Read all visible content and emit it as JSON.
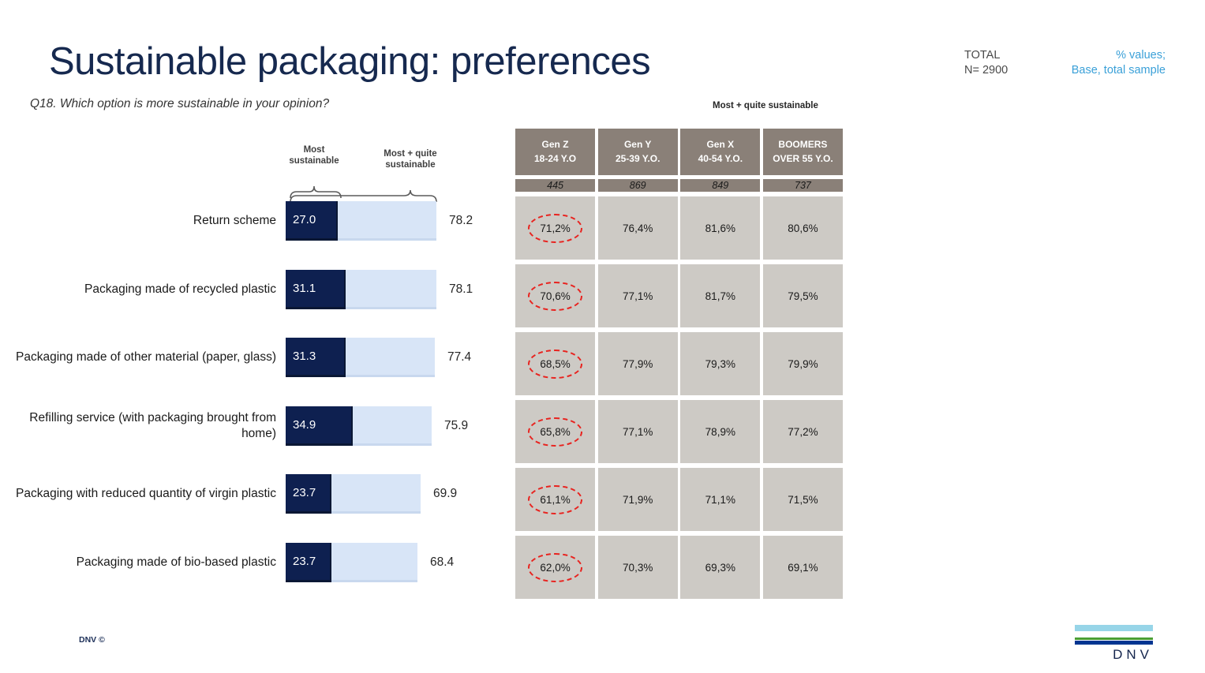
{
  "slide": {
    "title": "Sustainable packaging: preferences",
    "subtitle": "Q18. Which option is more sustainable in your opinion?"
  },
  "header_right": {
    "total_label": "TOTAL",
    "total_n": "N= 2900",
    "note_line1": "% values;",
    "note_line2": "Base, total sample"
  },
  "chart_data": {
    "type": "bar",
    "orientation": "horizontal",
    "title": "",
    "xlabel": "",
    "ylabel": "",
    "xlim": [
      0,
      80
    ],
    "grid": false,
    "legend_position": "top-brackets",
    "categories": [
      "Return scheme",
      "Packaging made of recycled plastic",
      "Packaging made of other material (paper, glass)",
      "Refilling service (with packaging brought from home)",
      "Packaging with reduced quantity of virgin plastic",
      "Packaging made of bio-based plastic"
    ],
    "series": [
      {
        "name": "Most sustainable",
        "values": [
          27.0,
          31.1,
          31.3,
          34.9,
          23.7,
          23.7
        ]
      },
      {
        "name": "Most + quite sustainable",
        "values": [
          78.2,
          78.1,
          77.4,
          75.9,
          69.9,
          68.4
        ]
      }
    ],
    "colors": {
      "most": "#0e2050",
      "quite": "#d8e5f7"
    }
  },
  "table": {
    "title": "Most + quite sustainable",
    "columns": [
      {
        "gen": "Gen Z",
        "age": "18-24 Y.O",
        "base": "445"
      },
      {
        "gen": "Gen Y",
        "age": "25-39 Y.O.",
        "base": "869"
      },
      {
        "gen": "Gen X",
        "age": "40-54 Y.O.",
        "base": "849"
      },
      {
        "gen": "BOOMERS",
        "age": "OVER 55 Y.O.",
        "base": "737"
      }
    ],
    "rows": [
      [
        "71,2%",
        "76,4%",
        "81,6%",
        "80,6%"
      ],
      [
        "70,6%",
        "77,1%",
        "81,7%",
        "79,5%"
      ],
      [
        "68,5%",
        "77,9%",
        "79,3%",
        "79,9%"
      ],
      [
        "65,8%",
        "77,1%",
        "78,9%",
        "77,2%"
      ],
      [
        "61,1%",
        "71,9%",
        "71,1%",
        "71,5%"
      ],
      [
        "62,0%",
        "70,3%",
        "69,3%",
        "69,1%"
      ]
    ],
    "highlighted_column_index": 0,
    "highlight_color": "#e8231f"
  },
  "footer": {
    "copyright": "DNV ©",
    "logo_text": "DNV"
  }
}
